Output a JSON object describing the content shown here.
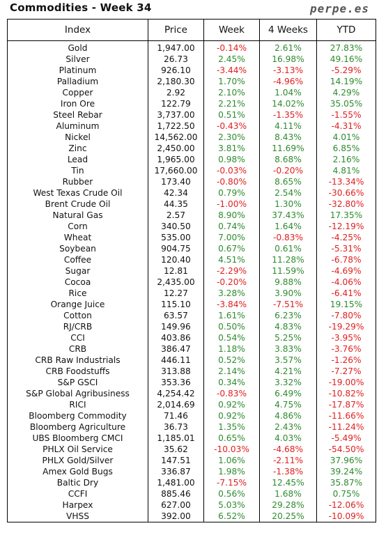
{
  "header": {
    "title": "Commodities - Week 34",
    "brand": "perpe.es"
  },
  "table": {
    "columns": [
      "Index",
      "Price",
      "Week",
      "4 Weeks",
      "YTD"
    ],
    "rows": [
      [
        "Gold",
        "1,947.00",
        "-0.14%",
        "2.61%",
        "27.83%"
      ],
      [
        "Silver",
        "26.73",
        "2.45%",
        "16.98%",
        "49.16%"
      ],
      [
        "Platinum",
        "926.10",
        "-3.44%",
        "-3.13%",
        "-5.29%"
      ],
      [
        "Palladium",
        "2,180.30",
        "1.70%",
        "-4.96%",
        "14.19%"
      ],
      [
        "Copper",
        "2.92",
        "2.10%",
        "1.04%",
        "4.29%"
      ],
      [
        "Iron Ore",
        "122.79",
        "2.21%",
        "14.02%",
        "35.05%"
      ],
      [
        "Steel Rebar",
        "3,737.00",
        "0.51%",
        "-1.35%",
        "-1.55%"
      ],
      [
        "Aluminum",
        "1,722.50",
        "-0.43%",
        "4.11%",
        "-4.31%"
      ],
      [
        "Nickel",
        "14,562.00",
        "2.30%",
        "8.43%",
        "4.01%"
      ],
      [
        "Zinc",
        "2,450.00",
        "3.81%",
        "11.69%",
        "6.85%"
      ],
      [
        "Lead",
        "1,965.00",
        "0.98%",
        "8.68%",
        "2.16%"
      ],
      [
        "Tin",
        "17,660.00",
        "-0.03%",
        "-0.20%",
        "4.81%"
      ],
      [
        "Rubber",
        "173.40",
        "-0.80%",
        "8.65%",
        "-13.34%"
      ],
      [
        "West Texas Crude Oil",
        "42.34",
        "0.79%",
        "2.54%",
        "-30.66%"
      ],
      [
        "Brent Crude Oil",
        "44.35",
        "-1.00%",
        "1.30%",
        "-32.80%"
      ],
      [
        "Natural Gas",
        "2.57",
        "8.90%",
        "37.43%",
        "17.35%"
      ],
      [
        "Corn",
        "340.50",
        "0.74%",
        "1.64%",
        "-12.19%"
      ],
      [
        "Wheat",
        "535.00",
        "7.00%",
        "-0.83%",
        "-4.25%"
      ],
      [
        "Soybean",
        "904.75",
        "0.67%",
        "0.61%",
        "-5.31%"
      ],
      [
        "Coffee",
        "120.40",
        "4.51%",
        "11.28%",
        "-6.78%"
      ],
      [
        "Sugar",
        "12.81",
        "-2.29%",
        "11.59%",
        "-4.69%"
      ],
      [
        "Cocoa",
        "2,435.00",
        "-0.20%",
        "9.88%",
        "-4.06%"
      ],
      [
        "Rice",
        "12.27",
        "3.28%",
        "3.90%",
        "-6.41%"
      ],
      [
        "Orange Juice",
        "115.10",
        "-3.84%",
        "-7.51%",
        "19.15%"
      ],
      [
        "Cotton",
        "63.57",
        "1.61%",
        "6.23%",
        "-7.80%"
      ],
      [
        "RJ/CRB",
        "149.96",
        "0.50%",
        "4.83%",
        "-19.29%"
      ],
      [
        "CCI",
        "403.86",
        "0.54%",
        "5.25%",
        "-3.95%"
      ],
      [
        "CRB",
        "386.47",
        "1.18%",
        "3.83%",
        "-3.76%"
      ],
      [
        "CRB Raw Industrials",
        "446.11",
        "0.52%",
        "3.57%",
        "-1.26%"
      ],
      [
        "CRB Foodstuffs",
        "313.88",
        "2.14%",
        "4.21%",
        "-7.27%"
      ],
      [
        "S&P GSCI",
        "353.36",
        "0.34%",
        "3.32%",
        "-19.00%"
      ],
      [
        "S&P Global Agribusiness",
        "4,254.42",
        "-0.83%",
        "6.49%",
        "-10.82%"
      ],
      [
        "RICI",
        "2,014.69",
        "0.92%",
        "4.75%",
        "-17.87%"
      ],
      [
        "Bloomberg Commodity",
        "71.46",
        "0.92%",
        "4.86%",
        "-11.66%"
      ],
      [
        "Bloomberg Agriculture",
        "36.73",
        "1.35%",
        "2.43%",
        "-11.24%"
      ],
      [
        "UBS Bloomberg CMCI",
        "1,185.01",
        "0.65%",
        "4.03%",
        "-5.49%"
      ],
      [
        "PHLX Oil Service",
        "35.62",
        "-10.03%",
        "-4.68%",
        "-54.50%"
      ],
      [
        "PHLX Gold/Silver",
        "147.51",
        "1.06%",
        "-2.11%",
        "37.96%"
      ],
      [
        "Amex Gold Bugs",
        "336.87",
        "1.98%",
        "-1.38%",
        "39.24%"
      ],
      [
        "Baltic Dry",
        "1,481.00",
        "-7.15%",
        "12.45%",
        "35.87%"
      ],
      [
        "CCFI",
        "885.46",
        "0.56%",
        "1.68%",
        "0.75%"
      ],
      [
        "Harpex",
        "627.00",
        "5.03%",
        "29.28%",
        "-12.06%"
      ],
      [
        "VHSS",
        "392.00",
        "6.52%",
        "20.25%",
        "-10.09%"
      ]
    ]
  },
  "colors": {
    "positive": "#2e8b2e",
    "negative": "#e02020",
    "border": "#000000"
  }
}
